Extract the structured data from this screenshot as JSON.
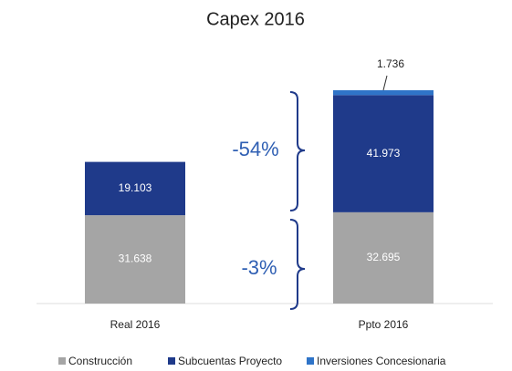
{
  "chart_data": {
    "type": "stacked_bar",
    "title": "Capex 2016",
    "categories": [
      "Real 2016",
      "Ppto 2016"
    ],
    "series": [
      {
        "name": "Construcción",
        "color": "#a5a5a5",
        "values": [
          31.638,
          32.695
        ]
      },
      {
        "name": "Subcuentas Proyecto",
        "color": "#1f3a8a",
        "values": [
          19.103,
          41.973
        ]
      },
      {
        "name": "Inversiones Concesionaria",
        "color": "#2f74c8",
        "values": [
          null,
          1.736
        ]
      }
    ],
    "annotations": [
      "-54%",
      "-3%"
    ],
    "legend": "bottom"
  }
}
